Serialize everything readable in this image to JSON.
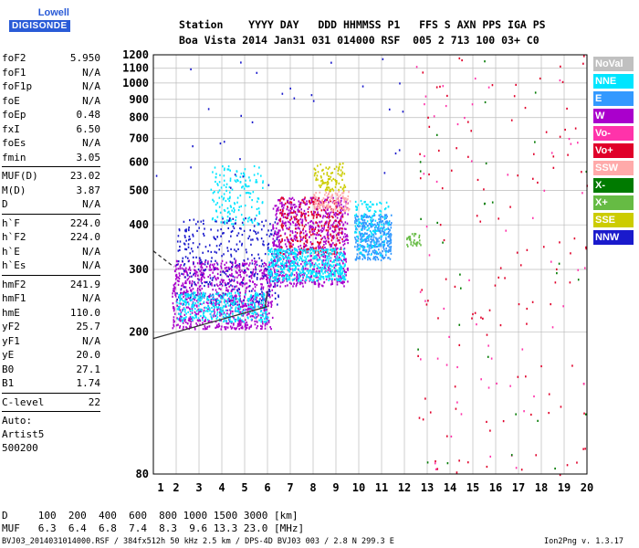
{
  "logo": {
    "brand": "Lowell",
    "name": "DIGISONDE"
  },
  "header": {
    "line1": "Station    YYYY DAY   DDD HHMMSS P1   FFS S AXN PPS IGA PS",
    "line2": "Boa Vista 2014 Jan31 031 014000 RSF  005 2 713 100 03+ C0"
  },
  "params_group1": [
    {
      "k": "foF2",
      "v": "5.950"
    },
    {
      "k": "foF1",
      "v": "N/A"
    },
    {
      "k": "foF1p",
      "v": "N/A"
    },
    {
      "k": "foE",
      "v": "N/A"
    },
    {
      "k": "foEp",
      "v": "0.48"
    },
    {
      "k": "fxI",
      "v": "6.50"
    },
    {
      "k": "foEs",
      "v": "N/A"
    },
    {
      "k": "fmin",
      "v": "3.05"
    }
  ],
  "params_group2": [
    {
      "k": "MUF(D)",
      "v": "23.02"
    },
    {
      "k": "M(D)",
      "v": "3.87"
    },
    {
      "k": "D",
      "v": "N/A"
    }
  ],
  "params_group3": [
    {
      "k": "h`F",
      "v": "224.0"
    },
    {
      "k": "h`F2",
      "v": "224.0"
    },
    {
      "k": "h`E",
      "v": "N/A"
    },
    {
      "k": "h`Es",
      "v": "N/A"
    }
  ],
  "params_group4": [
    {
      "k": "hmF2",
      "v": "241.9"
    },
    {
      "k": "hmF1",
      "v": "N/A"
    },
    {
      "k": "hmE",
      "v": "110.0"
    },
    {
      "k": "yF2",
      "v": "25.7"
    },
    {
      "k": "yF1",
      "v": "N/A"
    },
    {
      "k": "yE",
      "v": "20.0"
    },
    {
      "k": "B0",
      "v": "27.1"
    },
    {
      "k": "B1",
      "v": "1.74"
    }
  ],
  "params_group5": [
    {
      "k": "C-level",
      "v": "22"
    }
  ],
  "auto": {
    "l1": "Auto:",
    "l2": "Artist5",
    "l3": "500200"
  },
  "legend": [
    {
      "label": "NoVal",
      "color": "#c0c0c0"
    },
    {
      "label": "NNE",
      "color": "#00e5ff"
    },
    {
      "label": "E",
      "color": "#3399ff"
    },
    {
      "label": "W",
      "color": "#aa00cc"
    },
    {
      "label": "Vo-",
      "color": "#ff33aa"
    },
    {
      "label": "Vo+",
      "color": "#e0002a"
    },
    {
      "label": "SSW",
      "color": "#ffaaaa"
    },
    {
      "label": "X-",
      "color": "#007a00"
    },
    {
      "label": "X+",
      "color": "#66bb44"
    },
    {
      "label": "SSE",
      "color": "#cccc00"
    },
    {
      "label": "NNW",
      "color": "#1a1acc"
    }
  ],
  "distance_table": {
    "d_line": "D     100  200  400  600  800 1000 1500 3000 [km]",
    "muf_line": "MUF   6.3  6.4  6.8  7.4  8.3  9.6 13.3 23.0 [MHz]"
  },
  "footer": {
    "left": "BVJ03_2014031014000.RSF / 384fx512h 50 kHz 2.5 km / DPS-4D BVJ03 003 / 2.8 N 299.3 E",
    "right": "Ion2Png v. 1.3.17"
  },
  "chart_data": {
    "type": "scatter",
    "title": "",
    "xlabel": "",
    "ylabel": "",
    "xlim": [
      1,
      20
    ],
    "ylim": [
      80,
      1200
    ],
    "x_ticks": [
      1,
      2,
      3,
      4,
      5,
      6,
      7,
      8,
      9,
      10,
      11,
      12,
      13,
      14,
      15,
      16,
      17,
      18,
      19,
      20
    ],
    "y_ticks": [
      80,
      200,
      300,
      400,
      500,
      600,
      700,
      800,
      900,
      1000,
      1100,
      1200
    ],
    "grid": true,
    "legend_placement": "right",
    "y_scale": "log",
    "trace_lines": [
      {
        "name": "",
        "points": [
          [
            1.0,
            192
          ],
          [
            6.0,
            236
          ]
        ],
        "style": "solid"
      },
      {
        "name": "",
        "points": [
          [
            1.0,
            338
          ],
          [
            1.9,
            305
          ]
        ],
        "style": "dashed"
      },
      {
        "name": "",
        "points": [
          [
            5.9,
            236
          ],
          [
            6.0,
            260
          ]
        ],
        "style": "solid"
      }
    ],
    "clusters": [
      {
        "color": "#aa00cc",
        "x": [
          1.8,
          6.2
        ],
        "y": [
          205,
          320
        ],
        "n": 900
      },
      {
        "color": "#1a1acc",
        "x": [
          2.0,
          6.5
        ],
        "y": [
          240,
          420
        ],
        "n": 350
      },
      {
        "color": "#00e5ff",
        "x": [
          2.0,
          6.0
        ],
        "y": [
          215,
          260
        ],
        "n": 350
      },
      {
        "color": "#aa00cc",
        "x": [
          6.2,
          9.5
        ],
        "y": [
          270,
          480
        ],
        "n": 800
      },
      {
        "color": "#e0002a",
        "x": [
          6.5,
          9.3
        ],
        "y": [
          330,
          480
        ],
        "n": 250
      },
      {
        "color": "#00e5ff",
        "x": [
          6.0,
          9.4
        ],
        "y": [
          280,
          345
        ],
        "n": 500
      },
      {
        "color": "#00e5ff",
        "x": [
          3.5,
          5.8
        ],
        "y": [
          400,
          590
        ],
        "n": 160
      },
      {
        "color": "#ffaaaa",
        "x": [
          8.0,
          9.6
        ],
        "y": [
          440,
          500
        ],
        "n": 120
      },
      {
        "color": "#cccc00",
        "x": [
          8.0,
          9.4
        ],
        "y": [
          500,
          600
        ],
        "n": 90
      },
      {
        "color": "#3399ff",
        "x": [
          9.8,
          11.4
        ],
        "y": [
          320,
          430
        ],
        "n": 400
      },
      {
        "color": "#00e5ff",
        "x": [
          9.8,
          11.3
        ],
        "y": [
          330,
          470
        ],
        "n": 120
      },
      {
        "color": "#66bb44",
        "x": [
          12.0,
          12.7
        ],
        "y": [
          350,
          380
        ],
        "n": 30
      },
      {
        "color": "#e0002a",
        "x": [
          12.5,
          20.0
        ],
        "y": [
          80,
          1200
        ],
        "n": 120
      },
      {
        "color": "#ff33aa",
        "x": [
          12.5,
          20.0
        ],
        "y": [
          80,
          1200
        ],
        "n": 60
      },
      {
        "color": "#007a00",
        "x": [
          12.5,
          20.0
        ],
        "y": [
          80,
          1200
        ],
        "n": 30
      },
      {
        "color": "#1a1acc",
        "x": [
          1.1,
          12.0
        ],
        "y": [
          500,
          1200
        ],
        "n": 30
      }
    ]
  }
}
